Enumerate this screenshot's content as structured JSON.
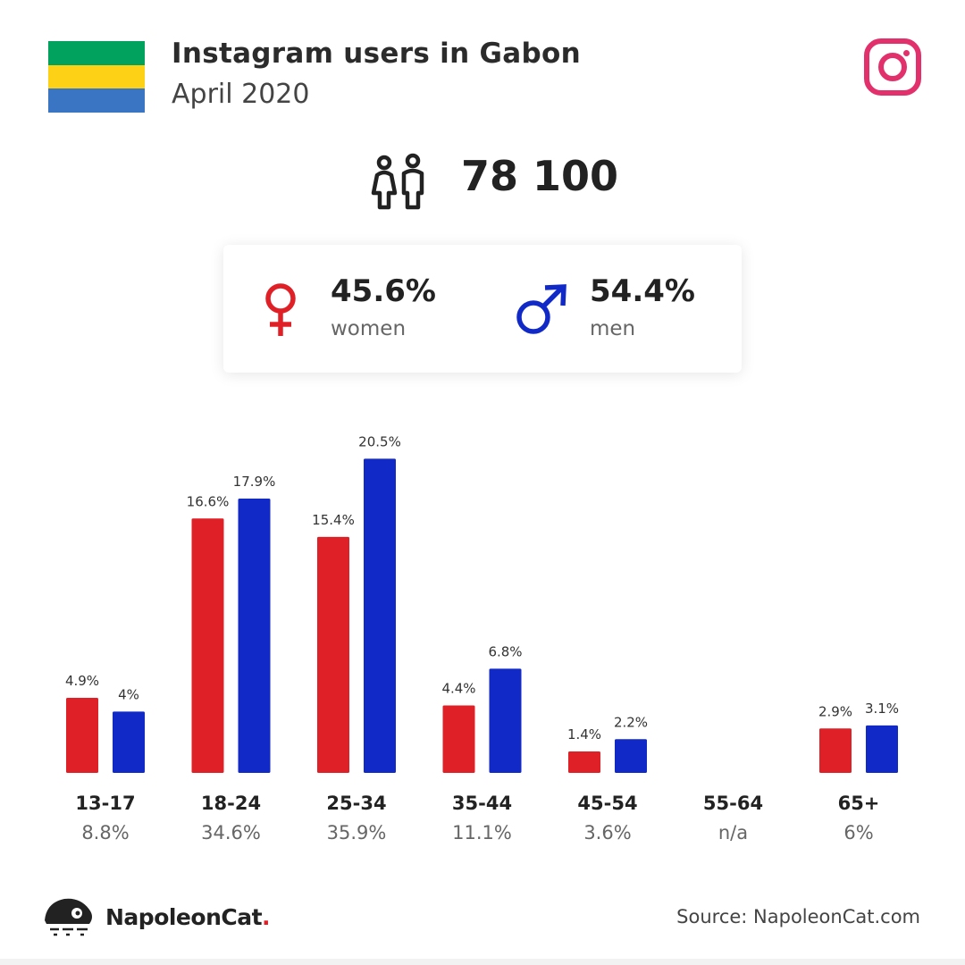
{
  "header": {
    "title": "Instagram users in Gabon",
    "subtitle": "April 2020"
  },
  "flag": {
    "stripes": [
      "#00a25e",
      "#fdd116",
      "#3a75c4"
    ]
  },
  "logo_icon": "instagram-icon",
  "total": {
    "icon": "users-icon",
    "value": "78 100"
  },
  "gender": {
    "women": {
      "icon": "female-symbol-icon",
      "pct": "45.6%",
      "label": "women",
      "color": "#e02027"
    },
    "men": {
      "icon": "male-symbol-icon",
      "pct": "54.4%",
      "label": "men",
      "color": "#1129c7"
    }
  },
  "chart_data": {
    "type": "bar",
    "categories": [
      "13-17",
      "18-24",
      "25-34",
      "35-44",
      "45-54",
      "55-64",
      "65+"
    ],
    "category_totals": [
      "8.8%",
      "34.6%",
      "35.9%",
      "11.1%",
      "3.6%",
      "n/a",
      "6%"
    ],
    "series": [
      {
        "name": "women",
        "color": "#e02027",
        "values": [
          4.9,
          16.6,
          15.4,
          4.4,
          1.4,
          null,
          2.9
        ],
        "labels": [
          "4.9%",
          "16.6%",
          "15.4%",
          "4.4%",
          "1.4%",
          "",
          "2.9%"
        ]
      },
      {
        "name": "men",
        "color": "#1129c7",
        "values": [
          4.0,
          17.9,
          20.5,
          6.8,
          2.2,
          null,
          3.1
        ],
        "labels": [
          "4%",
          "17.9%",
          "20.5%",
          "6.8%",
          "2.2%",
          "",
          "3.1%"
        ]
      }
    ]
  },
  "footer": {
    "brand": "NapoleonCat",
    "brand_dot": ".",
    "source": "Source: NapoleonCat.com",
    "logo_icon": "napoleoncat-logo-icon"
  }
}
